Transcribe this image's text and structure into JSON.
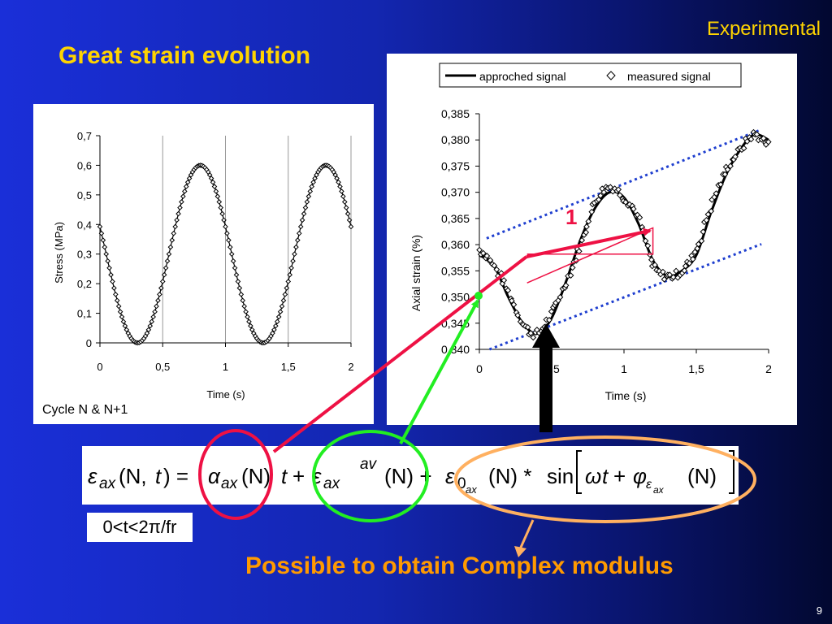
{
  "slide": {
    "section_label": "Experimental",
    "title": "Great strain evolution",
    "cycle_label": "Cycle N & N+1",
    "time_range": "0<t<2π/fr",
    "conclusion": "Possible to obtain Complex modulus",
    "page_number": "9",
    "annotation_marker": "1"
  },
  "equation": {
    "lhs": "εax (N,t)",
    "term_alpha": "αax (N) t",
    "term_av": "εax av (N)",
    "term_sin": "ε0ax (N) * sin[ω t + φεax (N)]"
  },
  "colors": {
    "background_left": "#1a2fd8",
    "background_right": "#020830",
    "title": "#ffd400",
    "conclusion": "#ff9a00",
    "red_marker": "#ee1144",
    "green_marker": "#22ee22",
    "dotted_envelope": "#1f3fcf"
  },
  "chart_data": [
    {
      "type": "scatter",
      "title": "",
      "xlabel": "Time (s)",
      "ylabel": "Stress (MPa)",
      "xlim": [
        0,
        2
      ],
      "ylim": [
        0,
        0.7
      ],
      "x_ticks": [
        "0",
        "0,5",
        "1",
        "1,5",
        "2"
      ],
      "y_ticks": [
        "0",
        "0,1",
        "0,2",
        "0,3",
        "0,4",
        "0,5",
        "0,6",
        "0,7"
      ],
      "grid": "vertical",
      "model": {
        "mean": 0.3,
        "amplitude": 0.3,
        "period": 1.0,
        "phase_t0": 0.05
      },
      "series": [
        {
          "marker": "diamond",
          "x": [
            0,
            0.1,
            0.2,
            0.3,
            0.4,
            0.5,
            0.6,
            0.7,
            0.8,
            0.9,
            1.0,
            1.1,
            1.2,
            1.3,
            1.4,
            1.5,
            1.6,
            1.7,
            1.8,
            1.9,
            2.0
          ],
          "values": [
            0.39,
            0.22,
            0.05,
            0.0,
            0.05,
            0.21,
            0.39,
            0.54,
            0.6,
            0.54,
            0.39,
            0.21,
            0.05,
            0.0,
            0.05,
            0.21,
            0.39,
            0.54,
            0.6,
            0.54,
            0.41
          ]
        }
      ]
    },
    {
      "type": "line",
      "title": "",
      "xlabel": "Time (s)",
      "ylabel": "Axial strain (%)",
      "xlim": [
        0,
        2
      ],
      "ylim": [
        0.34,
        0.385
      ],
      "x_ticks": [
        "0",
        "0,5",
        "1",
        "1,5",
        "2"
      ],
      "y_ticks": [
        "0,340",
        "0,345",
        "0,350",
        "0,355",
        "0,360",
        "0,365",
        "0,370",
        "0,375",
        "0,380",
        "0,385"
      ],
      "legend": "top",
      "series": [
        {
          "name": "approched signal",
          "style": "line",
          "x": [
            0,
            0.1,
            0.2,
            0.3,
            0.4,
            0.5,
            0.6,
            0.7,
            0.8,
            0.9,
            1.0,
            1.1,
            1.2,
            1.3,
            1.4,
            1.5,
            1.6,
            1.7,
            1.8,
            1.9,
            2.0
          ],
          "values": [
            0.358,
            0.356,
            0.35,
            0.345,
            0.343,
            0.346,
            0.353,
            0.361,
            0.367,
            0.37,
            0.369,
            0.364,
            0.357,
            0.354,
            0.355,
            0.358,
            0.366,
            0.373,
            0.378,
            0.381,
            0.38
          ]
        },
        {
          "name": "measured signal",
          "style": "diamond",
          "x": [
            0,
            0.1,
            0.2,
            0.3,
            0.4,
            0.5,
            0.6,
            0.7,
            0.8,
            0.9,
            1.0,
            1.1,
            1.2,
            1.3,
            1.4,
            1.5,
            1.6,
            1.7,
            1.8,
            1.9,
            2.0
          ],
          "values": [
            0.359,
            0.356,
            0.351,
            0.345,
            0.343,
            0.347,
            0.353,
            0.36,
            0.368,
            0.371,
            0.369,
            0.365,
            0.356,
            0.354,
            0.355,
            0.359,
            0.367,
            0.374,
            0.378,
            0.381,
            0.379
          ]
        }
      ],
      "envelope_upper": {
        "x": [
          0.05,
          1.95
        ],
        "values": [
          0.3612,
          0.382
        ]
      },
      "envelope_lower": {
        "x": [
          0.07,
          1.95
        ],
        "values": [
          0.34,
          0.3601
        ]
      },
      "slope_marker": {
        "x": [
          0.33,
          1.2,
          1.2
        ],
        "values": [
          0.3582,
          0.3582,
          0.3632
        ]
      }
    }
  ]
}
